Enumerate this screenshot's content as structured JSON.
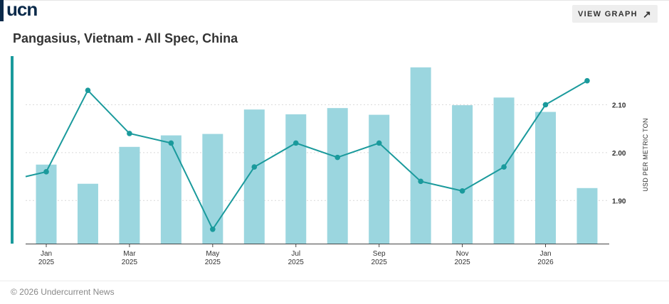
{
  "header": {
    "logo_text": "ucn",
    "view_button_label": "VIEW GRAPH",
    "view_button_icon": "arrow-up-right-icon"
  },
  "title": "Pangasius, Vietnam - All Spec, China",
  "footer": "© 2026 Undercurrent News",
  "colors": {
    "bar": "#9bd6df",
    "line": "#1a9a9c",
    "accent": "#1a9a9c",
    "logo": "#0b2a4a"
  },
  "chart_data": {
    "type": "bar",
    "ylabel": "USD PER METRIC TON",
    "y_ticks": [
      "1.90",
      "2.00",
      "2.10"
    ],
    "x_tick_labels": [
      [
        "Jan",
        "2025"
      ],
      [
        "Mar",
        "2025"
      ],
      [
        "May",
        "2025"
      ],
      [
        "Jul",
        "2025"
      ],
      [
        "Sep",
        "2025"
      ],
      [
        "Nov",
        "2025"
      ],
      [
        "Jan",
        "2026"
      ]
    ],
    "categories": [
      "Jan 2025",
      "Feb 2025",
      "Mar 2025",
      "Apr 2025",
      "May 2025",
      "Jun 2025",
      "Jul 2025",
      "Aug 2025",
      "Sep 2025",
      "Oct 2025",
      "Nov 2025",
      "Dec 2025",
      "Jan 2026",
      "Feb 2026"
    ],
    "series": [
      {
        "type": "bar",
        "values": [
          1.975,
          1.935,
          2.012,
          2.036,
          2.039,
          2.09,
          2.08,
          2.093,
          2.079,
          2.178,
          2.099,
          2.115,
          2.085,
          1.926
        ]
      },
      {
        "type": "line",
        "values": [
          1.96,
          2.13,
          2.04,
          2.02,
          1.84,
          1.97,
          2.02,
          1.99,
          2.02,
          1.94,
          1.92,
          1.97,
          2.1,
          2.15
        ]
      }
    ],
    "ylim": [
      1.81,
      2.2
    ],
    "grid": true
  }
}
